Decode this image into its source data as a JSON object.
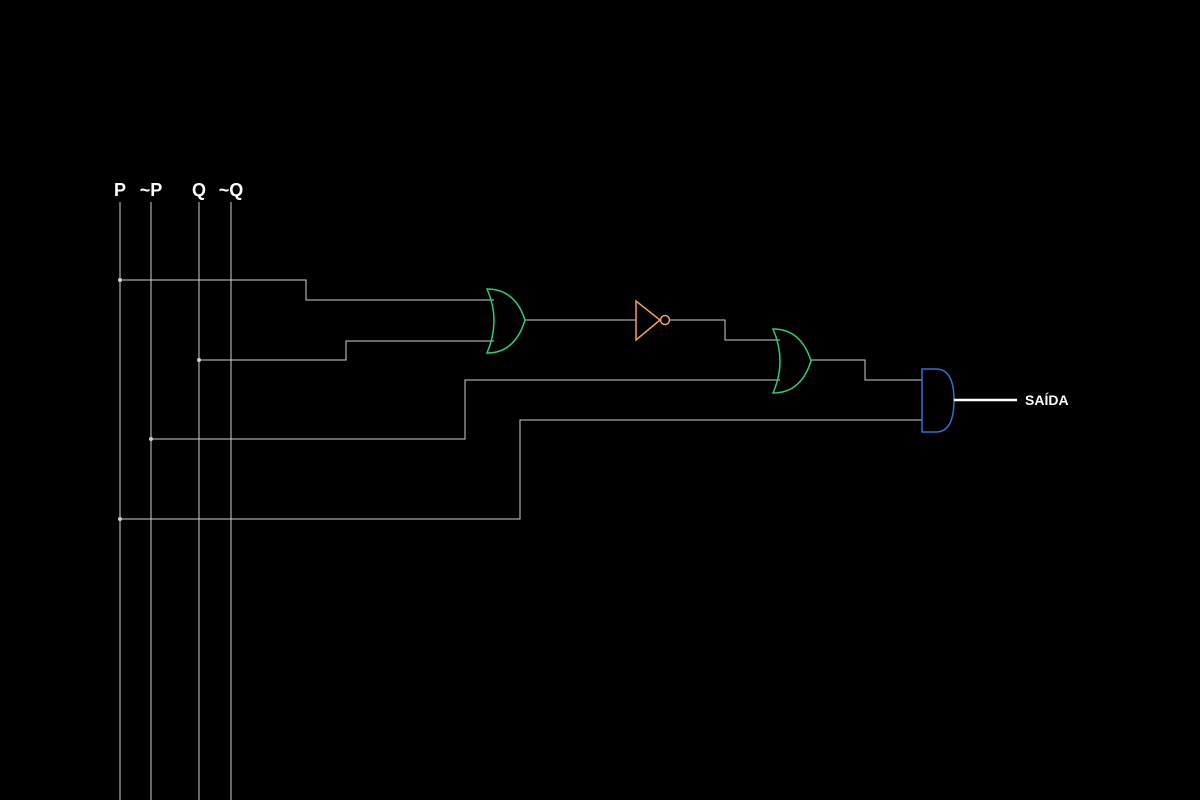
{
  "inputs": [
    {
      "id": "p",
      "label": "P"
    },
    {
      "id": "not-p",
      "label": "~P"
    },
    {
      "id": "q",
      "label": "Q"
    },
    {
      "id": "not-q",
      "label": "~Q"
    }
  ],
  "gates": [
    {
      "id": "or-1",
      "type": "OR"
    },
    {
      "id": "not-1",
      "type": "NOT"
    },
    {
      "id": "or-2",
      "type": "OR"
    },
    {
      "id": "and-1",
      "type": "AND"
    }
  ],
  "output": {
    "label": "SAÍDA"
  },
  "colors": {
    "background": "#000000",
    "text": "#ffffff",
    "wire": "#d0d0d0",
    "output_wire": "#ffffff",
    "or_gate": "#2ecc71",
    "not_gate": "#f0a060",
    "and_gate": "#3a6cd6"
  }
}
